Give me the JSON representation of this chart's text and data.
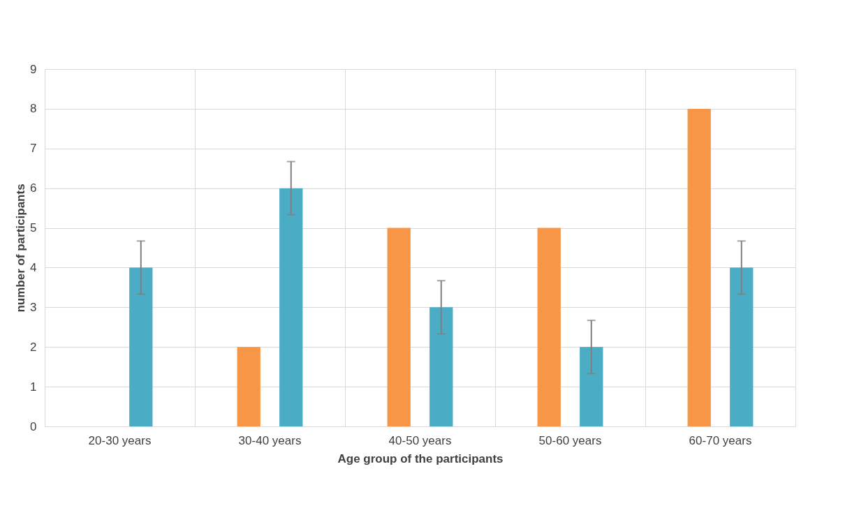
{
  "chart_data": {
    "type": "bar",
    "xlabel": "Age group of the participants",
    "ylabel": "number of participants",
    "categories": [
      "20-30 years",
      "30-40 years",
      "40-50 years",
      "50-60 years",
      "60-70 years"
    ],
    "series": [
      {
        "color": "#f79646",
        "values": [
          null,
          2,
          5,
          5,
          8
        ]
      },
      {
        "color": "#4bacc6",
        "values": [
          4,
          6,
          3,
          2,
          4
        ],
        "errors": [
          0.67,
          0.67,
          0.67,
          0.67,
          0.67
        ]
      }
    ],
    "ylim": [
      0,
      9
    ],
    "yticks": [
      0,
      1,
      2,
      3,
      4,
      5,
      6,
      7,
      8,
      9
    ],
    "grid": true,
    "legend": false
  }
}
